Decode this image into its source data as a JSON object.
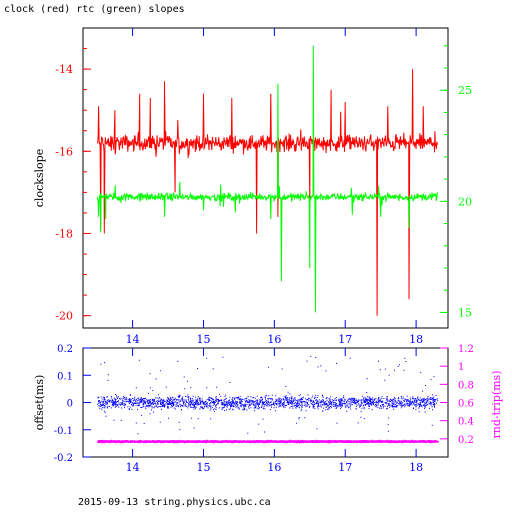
{
  "header": {
    "title": "clock (red) rtc (green) slopes"
  },
  "footer": {
    "text": "2015-09-13 string.physics.ubc.ca"
  },
  "chart_data": [
    {
      "type": "line",
      "title": "clock (red) rtc (green) slopes",
      "xlabel": "",
      "ylabel": "clockslope",
      "xlim": [
        13.3,
        18.45
      ],
      "ylim": [
        -20.3,
        -13.0
      ],
      "ylim_right": [
        14.3,
        27.8
      ],
      "x_ticks": [
        "14",
        "15",
        "16",
        "17",
        "18"
      ],
      "y_ticks_left": [
        "-14",
        "-16",
        "-18",
        "-20"
      ],
      "y_ticks_right": [
        "15",
        "20",
        "25"
      ],
      "grid": false,
      "colors": {
        "clock": "#ff0000",
        "rtc": "#00ff00",
        "left_axis": "#ff0000",
        "right_axis": "#00ff00",
        "x_axis": "#0000ff"
      },
      "series": [
        {
          "key": "clock",
          "axis": "left",
          "color": "#ff0000",
          "base": -15.8,
          "x_start": 13.5,
          "x_end": 18.3,
          "noise": 0.3,
          "spikes": [
            {
              "x": 13.52,
              "y": -14.9
            },
            {
              "x": 13.55,
              "y": -17.9
            },
            {
              "x": 13.6,
              "y": -18.0
            },
            {
              "x": 13.75,
              "y": -15.0
            },
            {
              "x": 14.1,
              "y": -14.6
            },
            {
              "x": 14.25,
              "y": -14.7
            },
            {
              "x": 14.45,
              "y": -14.3
            },
            {
              "x": 14.6,
              "y": -17.0
            },
            {
              "x": 15.0,
              "y": -14.6
            },
            {
              "x": 15.4,
              "y": -14.7
            },
            {
              "x": 15.75,
              "y": -18.0
            },
            {
              "x": 15.95,
              "y": -14.6
            },
            {
              "x": 16.05,
              "y": -17.6
            },
            {
              "x": 16.5,
              "y": -17.3
            },
            {
              "x": 16.8,
              "y": -14.5
            },
            {
              "x": 17.0,
              "y": -14.8
            },
            {
              "x": 17.45,
              "y": -20.0
            },
            {
              "x": 17.6,
              "y": -14.9
            },
            {
              "x": 17.9,
              "y": -19.6
            },
            {
              "x": 17.95,
              "y": -14.0
            },
            {
              "x": 18.1,
              "y": -14.9
            }
          ]
        },
        {
          "key": "rtc",
          "axis": "right",
          "color": "#00ff00",
          "base": 20.2,
          "x_start": 13.5,
          "x_end": 18.3,
          "noise": 0.25,
          "spikes": [
            {
              "x": 13.52,
              "y": 19.3
            },
            {
              "x": 13.55,
              "y": 18.6
            },
            {
              "x": 13.62,
              "y": 19.2
            },
            {
              "x": 14.45,
              "y": 19.3
            },
            {
              "x": 15.0,
              "y": 19.6
            },
            {
              "x": 15.45,
              "y": 19.5
            },
            {
              "x": 15.95,
              "y": 19.2
            },
            {
              "x": 16.1,
              "y": 16.4
            },
            {
              "x": 16.05,
              "y": 25.3
            },
            {
              "x": 16.5,
              "y": 17.0
            },
            {
              "x": 16.55,
              "y": 27.0
            },
            {
              "x": 16.58,
              "y": 15.0
            },
            {
              "x": 17.1,
              "y": 19.4
            },
            {
              "x": 17.5,
              "y": 19.3
            },
            {
              "x": 17.9,
              "y": 18.8
            }
          ]
        }
      ]
    },
    {
      "type": "scatter",
      "title": "",
      "xlabel": "",
      "ylabel": "offset(ms)",
      "ylabel_right": "rnd-trip(ms)",
      "xlim": [
        13.3,
        18.45
      ],
      "ylim": [
        -0.2,
        0.2
      ],
      "ylim_right": [
        0.0,
        1.2
      ],
      "x_ticks": [
        "14",
        "15",
        "16",
        "17",
        "18"
      ],
      "y_ticks_left": [
        "0.2",
        "0.1",
        "0",
        "-0.1",
        "-0.2"
      ],
      "y_ticks_right": [
        "1.2",
        "1",
        "0.8",
        "0.6",
        "0.4",
        "0.2"
      ],
      "grid": false,
      "colors": {
        "offset": "#0000ff",
        "roundtrip": "#ff00ff",
        "left_axis": "#0000ff",
        "right_axis": "#ff00ff",
        "x_axis": "#0000ff"
      },
      "series": [
        {
          "key": "offset",
          "axis": "left",
          "color": "#0000ff",
          "x_start": 13.5,
          "x_end": 18.3,
          "center": 0.0,
          "spread": 0.025,
          "outlier_range": [
            -0.12,
            0.17
          ]
        },
        {
          "key": "roundtrip",
          "axis": "right",
          "color": "#ff00ff",
          "x_start": 13.5,
          "x_end": 18.3,
          "center": 0.17,
          "spread": 0.012
        }
      ]
    }
  ]
}
